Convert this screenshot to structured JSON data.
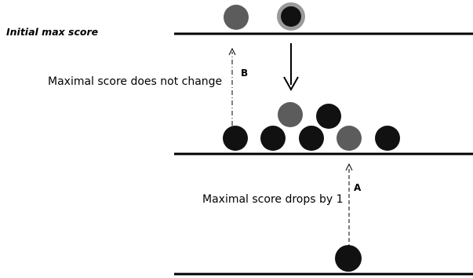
{
  "title": "Initial max score",
  "annotations": {
    "b_letter": "B",
    "b_text": "Maximal score does not change",
    "a_letter": "A",
    "a_text": "Maximal score drops by 1"
  },
  "colors": {
    "line": "#000000",
    "black_ball": "#111111",
    "gray_ball": "#5c5c5c",
    "ring": "#9a9a9a"
  }
}
